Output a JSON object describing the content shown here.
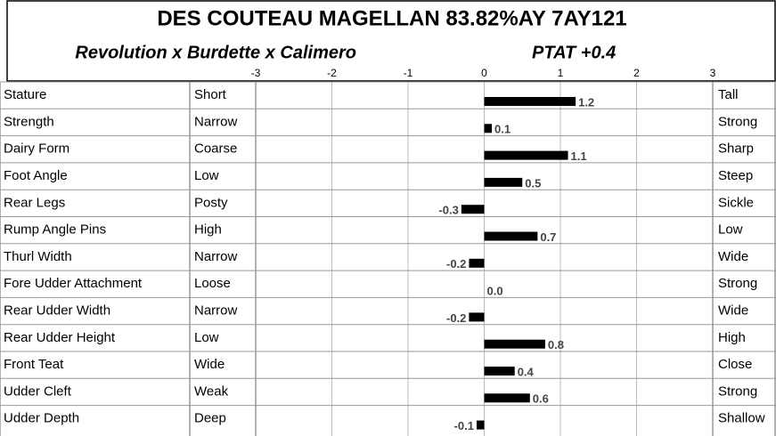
{
  "chart_data": {
    "type": "bar",
    "title": "DES COUTEAU MAGELLAN  83.82%AY 7AY121",
    "subtitle": "Revolution x Burdette x Calimero",
    "ptat": "PTAT +0.4",
    "categories": [
      "Stature",
      "Strength",
      "Dairy Form",
      "Foot Angle",
      "Rear Legs",
      "Rump Angle Pins",
      "Thurl Width",
      "Fore Udder Attachment",
      "Rear Udder Width",
      "Rear Udder Height",
      "Front Teat",
      "Udder Cleft",
      "Udder Depth"
    ],
    "low_labels": [
      "Short",
      "Narrow",
      "Coarse",
      "Low",
      "Posty",
      "High",
      "Narrow",
      "Loose",
      "Narrow",
      "Low",
      "Wide",
      "Weak",
      "Deep"
    ],
    "high_labels": [
      "Tall",
      "Strong",
      "Sharp",
      "Steep",
      "Sickle",
      "Low",
      "Wide",
      "Strong",
      "Wide",
      "High",
      "Close",
      "Strong",
      "Shallow"
    ],
    "values": [
      1.2,
      0.1,
      1.1,
      0.5,
      -0.3,
      0.7,
      -0.2,
      0.0,
      -0.2,
      0.8,
      0.4,
      0.6,
      -0.1
    ],
    "value_labels": [
      "1.2",
      "0.1",
      "1.1",
      "0.5",
      "-0.3",
      "0.7",
      "-0.2",
      "0.0",
      "-0.2",
      "0.8",
      "0.4",
      "0.6",
      "-0.1"
    ],
    "color": "#000000",
    "xlim": [
      -3,
      3
    ],
    "xticks": [
      -3,
      -2,
      -1,
      0,
      1,
      2,
      3
    ],
    "grid": true
  }
}
